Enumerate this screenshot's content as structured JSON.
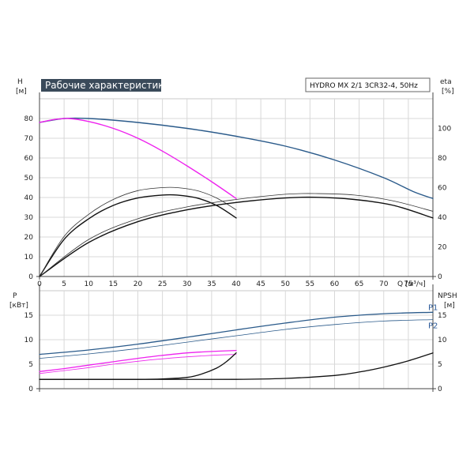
{
  "chart_data": [
    {
      "type": "line",
      "title": "Рабочие характеристики",
      "model": "HYDRO MX 2/1 3CR32-4, 50Hz",
      "xlabel": "Q [м³/ч]",
      "ylabel_left": [
        "H",
        "[м]"
      ],
      "ylabel_right": [
        "eta",
        "[%]"
      ],
      "xlim": [
        0,
        80
      ],
      "ylim_left": [
        0,
        90
      ],
      "ylim_right": [
        0,
        120
      ],
      "x_ticks": [
        0,
        5,
        10,
        15,
        20,
        25,
        30,
        35,
        40,
        45,
        50,
        55,
        60,
        65,
        70,
        75
      ],
      "x_end_label": "Q [м³/ч]",
      "y_ticks_left": [
        0,
        10,
        20,
        30,
        40,
        50,
        60,
        70,
        80
      ],
      "y_ticks_right": [
        0,
        20,
        40,
        60,
        80,
        100
      ],
      "grid": true,
      "series": [
        {
          "axis": "left",
          "color": "#2a5a8a",
          "width": 1.4,
          "x": [
            0,
            5,
            10,
            20,
            30,
            40,
            50,
            60,
            70,
            76,
            80
          ],
          "y": [
            78,
            80,
            80,
            78,
            75,
            71,
            66,
            59,
            50,
            43,
            39.5
          ]
        },
        {
          "axis": "left",
          "color": "#ee22ee",
          "width": 1.4,
          "x": [
            0,
            3,
            6,
            10,
            15,
            20,
            25,
            30,
            35,
            40
          ],
          "y": [
            78,
            79.5,
            80,
            78.5,
            75,
            70,
            63.5,
            56,
            48,
            39.5
          ]
        },
        {
          "axis": "right",
          "color": "#111111",
          "width": 1.4,
          "x": [
            0,
            5,
            10,
            15,
            20,
            25,
            28,
            32,
            36,
            40
          ],
          "y": [
            0,
            25,
            39,
            48,
            53,
            55,
            55,
            53,
            48,
            39.5
          ]
        },
        {
          "axis": "right",
          "color": "#333333",
          "width": 0.8,
          "x": [
            0,
            5,
            10,
            15,
            20,
            25,
            28,
            32,
            36,
            40
          ],
          "y": [
            0,
            27,
            42,
            52,
            58,
            60,
            60,
            58,
            53,
            45
          ]
        },
        {
          "axis": "right",
          "color": "#111111",
          "width": 1.4,
          "x": [
            0,
            10,
            20,
            30,
            40,
            50,
            56,
            64,
            72,
            80
          ],
          "y": [
            0,
            23,
            37,
            45,
            50,
            53,
            53.5,
            52,
            48,
            39.5
          ]
        },
        {
          "axis": "right",
          "color": "#333333",
          "width": 0.8,
          "x": [
            0,
            10,
            20,
            30,
            40,
            50,
            56,
            64,
            72,
            80
          ],
          "y": [
            0,
            25,
            39,
            47,
            52,
            55.5,
            56,
            55,
            51,
            44
          ]
        }
      ]
    },
    {
      "type": "line",
      "ylabel_left": [
        "P",
        "[кВт]"
      ],
      "ylabel_right": [
        "NPSH",
        "[м]"
      ],
      "xlim": [
        0,
        80
      ],
      "ylim_left": [
        0,
        20
      ],
      "ylim_right": [
        0,
        20
      ],
      "y_ticks_left": [
        0,
        5,
        10,
        15
      ],
      "y_ticks_right": [
        0,
        5,
        10,
        15
      ],
      "grid": true,
      "series": [
        {
          "axis": "left",
          "name": "P1",
          "color": "#2a5a8a",
          "width": 1.3,
          "x": [
            0,
            10,
            20,
            30,
            40,
            50,
            60,
            70,
            80
          ],
          "y": [
            7,
            7.9,
            9.1,
            10.5,
            12,
            13.4,
            14.6,
            15.3,
            15.6
          ]
        },
        {
          "axis": "left",
          "name": "P2",
          "color": "#2a5a8a",
          "width": 0.8,
          "x": [
            0,
            10,
            20,
            30,
            40,
            50,
            60,
            70,
            80
          ],
          "y": [
            6.2,
            7.1,
            8.2,
            9.5,
            10.8,
            12.1,
            13.1,
            13.8,
            14.1
          ]
        },
        {
          "axis": "left",
          "color": "#ee22ee",
          "width": 1.3,
          "x": [
            0,
            5,
            10,
            15,
            20,
            25,
            30,
            35,
            40
          ],
          "y": [
            3.5,
            4.1,
            4.8,
            5.5,
            6.2,
            6.8,
            7.3,
            7.6,
            7.8
          ]
        },
        {
          "axis": "left",
          "color": "#ee22ee",
          "width": 0.8,
          "x": [
            0,
            5,
            10,
            15,
            20,
            25,
            30,
            35,
            40
          ],
          "y": [
            3.1,
            3.7,
            4.3,
            5,
            5.6,
            6.1,
            6.5,
            6.8,
            7
          ]
        },
        {
          "axis": "right",
          "color": "#111111",
          "width": 1.3,
          "x": [
            0,
            10,
            20,
            25,
            30,
            33,
            36,
            38,
            40
          ],
          "y": [
            1.9,
            1.9,
            1.9,
            2,
            2.3,
            3,
            4.2,
            5.5,
            7.3
          ]
        },
        {
          "axis": "right",
          "color": "#111111",
          "width": 1.3,
          "x": [
            0,
            20,
            40,
            50,
            60,
            65,
            70,
            75,
            80
          ],
          "y": [
            1.9,
            1.9,
            1.9,
            2.1,
            2.7,
            3.4,
            4.4,
            5.7,
            7.3
          ]
        }
      ]
    }
  ]
}
